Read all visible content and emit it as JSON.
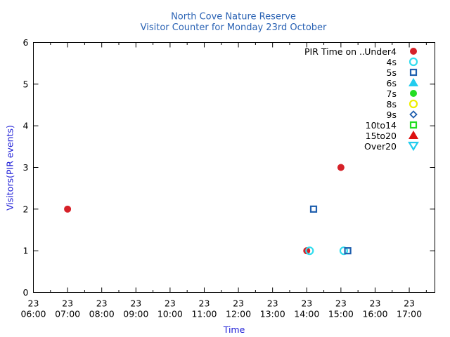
{
  "chart_data": {
    "type": "scatter",
    "title": "North Cove Nature Reserve",
    "subtitle": "Visitor Counter for Monday 23rd October",
    "xlabel": "Time",
    "ylabel": "Visitors(PIR events)",
    "xlim": [
      "23 06:00",
      "23 17:45"
    ],
    "ylim": [
      0,
      6
    ],
    "yticks": [
      0,
      1,
      2,
      3,
      4,
      5,
      6
    ],
    "xticks": [
      {
        "day": "23",
        "time": "06:00"
      },
      {
        "day": "23",
        "time": "07:00"
      },
      {
        "day": "23",
        "time": "08:00"
      },
      {
        "day": "23",
        "time": "09:00"
      },
      {
        "day": "23",
        "time": "10:00"
      },
      {
        "day": "23",
        "time": "11:00"
      },
      {
        "day": "23",
        "time": "12:00"
      },
      {
        "day": "23",
        "time": "13:00"
      },
      {
        "day": "23",
        "time": "14:00"
      },
      {
        "day": "23",
        "time": "15:00"
      },
      {
        "day": "23",
        "time": "16:00"
      },
      {
        "day": "23",
        "time": "17:00"
      }
    ],
    "grid": false,
    "legend_position": "top-right",
    "legend_title": "PIR Time on ..",
    "series": [
      {
        "name": "Under4",
        "marker": "filled-circle",
        "color": "#d62128",
        "points": [
          {
            "x": "23 07:00",
            "y": 2
          },
          {
            "x": "23 14:00",
            "y": 1
          },
          {
            "x": "23 15:00",
            "y": 3
          }
        ]
      },
      {
        "name": "4s",
        "marker": "open-circle",
        "color": "#33ddee",
        "points": [
          {
            "x": "23 14:05",
            "y": 1
          },
          {
            "x": "23 15:05",
            "y": 1
          }
        ]
      },
      {
        "name": "5s",
        "marker": "open-square",
        "color": "#1f5fae",
        "points": [
          {
            "x": "23 14:12",
            "y": 2
          },
          {
            "x": "23 15:12",
            "y": 1
          }
        ]
      },
      {
        "name": "6s",
        "marker": "filled-triangle",
        "color": "#22ccee",
        "points": []
      },
      {
        "name": "7s",
        "marker": "filled-circle",
        "color": "#22dd22",
        "points": []
      },
      {
        "name": "8s",
        "marker": "open-circle",
        "color": "#eeee00",
        "points": []
      },
      {
        "name": "9s",
        "marker": "open-diamond",
        "color": "#1f5fae",
        "points": []
      },
      {
        "name": "10to14",
        "marker": "open-square",
        "color": "#22dd22",
        "points": []
      },
      {
        "name": "15to20",
        "marker": "filled-triangle",
        "color": "#dd1111",
        "points": []
      },
      {
        "name": "Over20",
        "marker": "open-triangle-down",
        "color": "#22ccee",
        "points": []
      }
    ]
  }
}
